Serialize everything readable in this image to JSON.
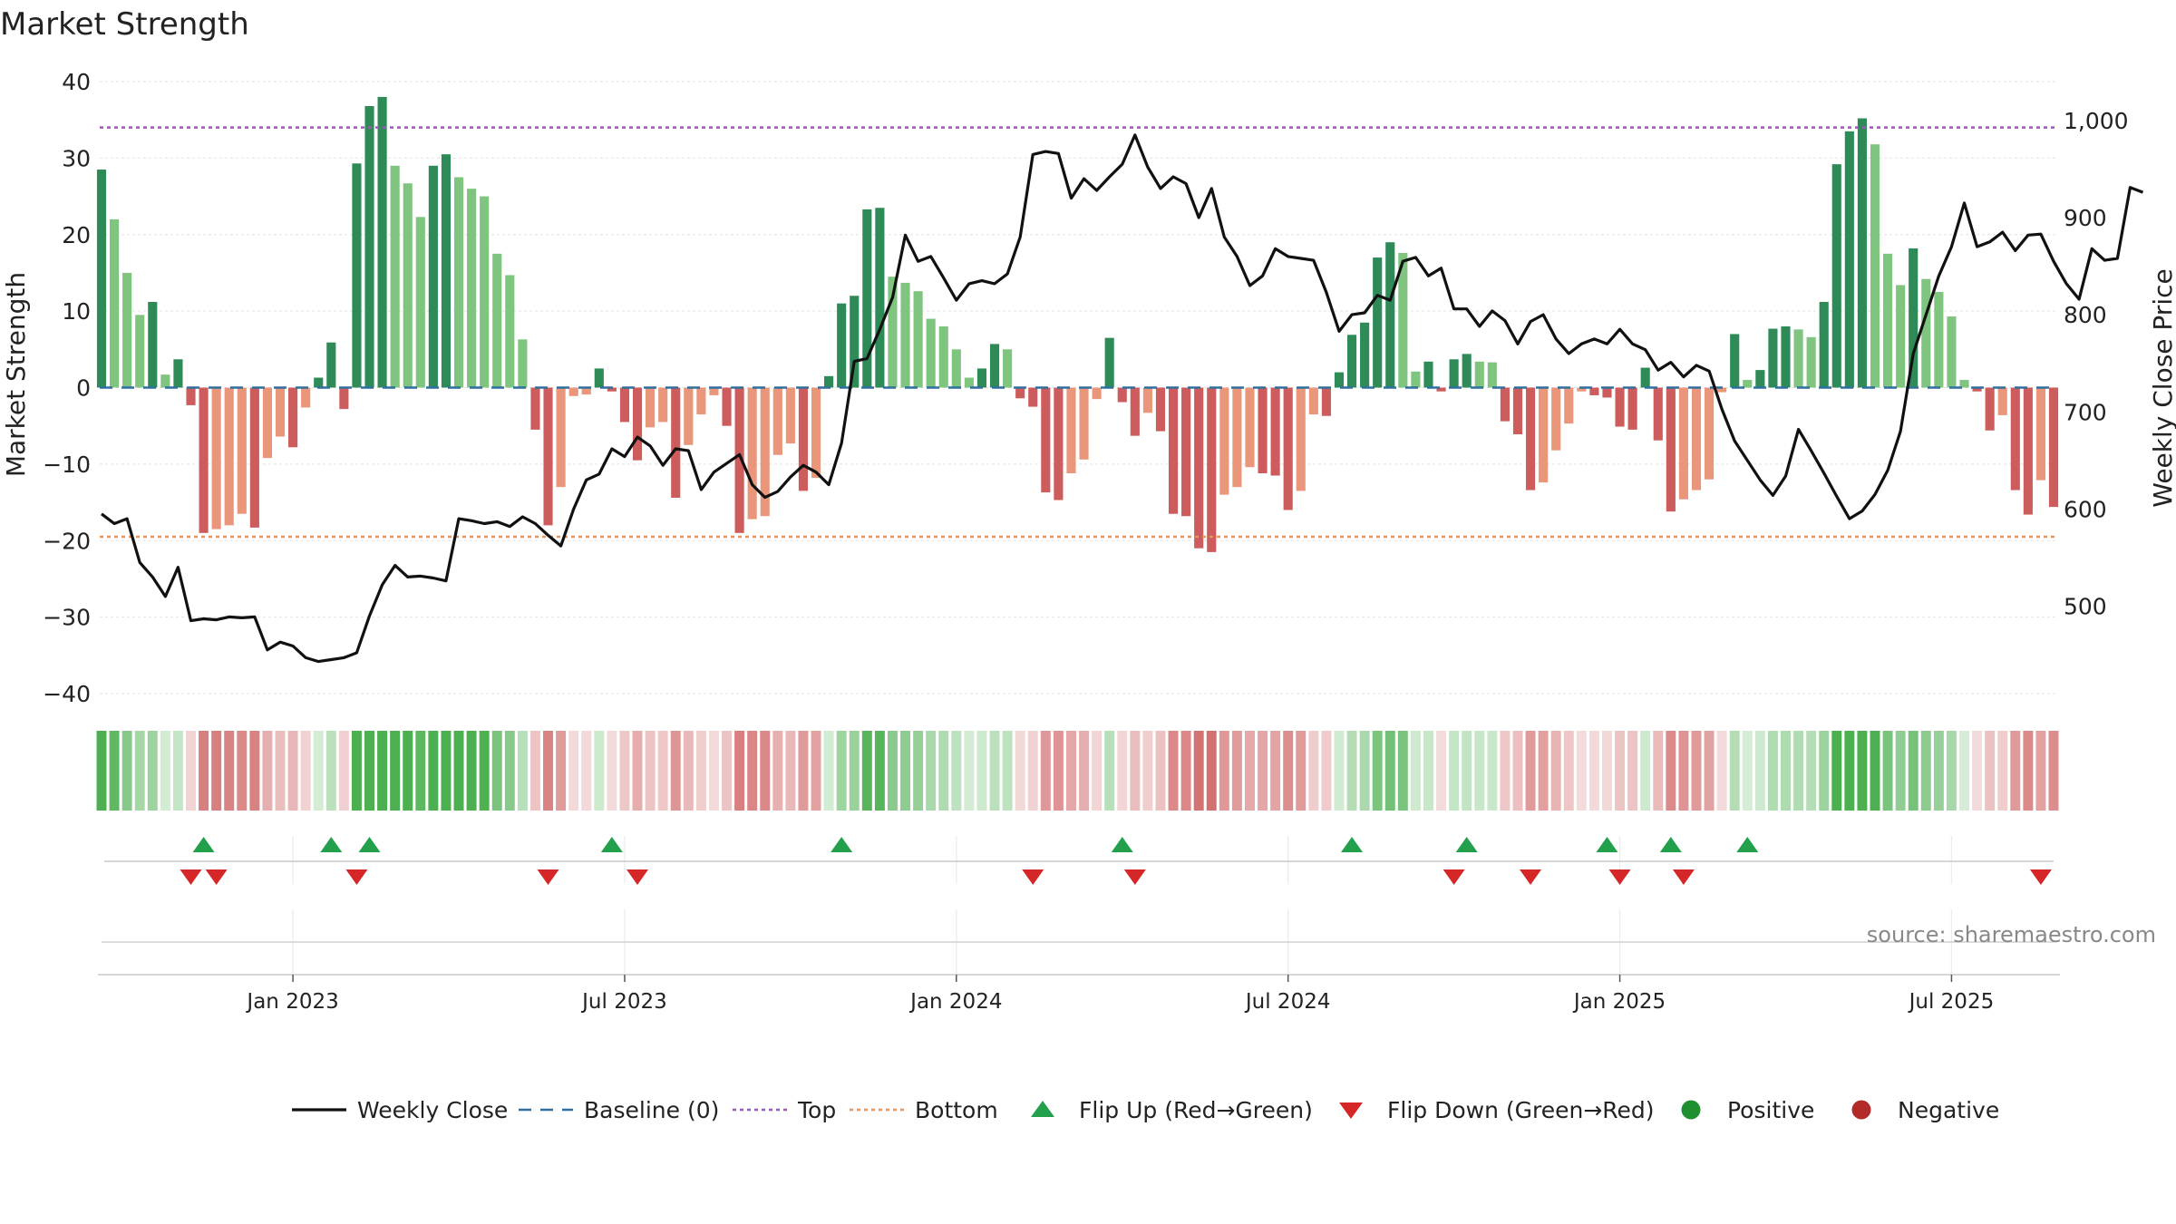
{
  "chart_data": {
    "type": "bar+line",
    "title": "Market Strength",
    "y_left_label": "Market Strength",
    "y_right_label": "Weekly Close Price",
    "y_left_range": [
      -40,
      40
    ],
    "y_left_ticks": [
      40,
      30,
      20,
      10,
      0,
      -10,
      -20,
      -30,
      -40
    ],
    "y_left_tick_labels": [
      "40",
      "30",
      "20",
      "10",
      "0",
      "−10",
      "−20",
      "−30",
      "−40"
    ],
    "y_right_range": [
      410,
      1040
    ],
    "y_right_ticks": [
      1000,
      900,
      800,
      700,
      600,
      500
    ],
    "y_right_tick_labels": [
      "1,000",
      "900",
      "800",
      "700",
      "600",
      "500"
    ],
    "x_ticks": [
      {
        "week": 15,
        "label": "Jan 2023"
      },
      {
        "week": 41,
        "label": "Jul 2023"
      },
      {
        "week": 67,
        "label": "Jan 2024"
      },
      {
        "week": 93,
        "label": "Jul 2024"
      },
      {
        "week": 119,
        "label": "Jan 2025"
      },
      {
        "week": 145,
        "label": "Jul 2025"
      }
    ],
    "top_threshold": 34,
    "bottom_threshold": -19.5,
    "strength": [
      28.5,
      22,
      15,
      9.5,
      11.2,
      1.7,
      3.7,
      -2.3,
      -19,
      -18.5,
      -18,
      -16.5,
      -18.3,
      -9.2,
      -6.4,
      -7.8,
      -2.6,
      1.3,
      5.9,
      -2.8,
      29.3,
      36.8,
      38,
      29,
      26.7,
      22.3,
      29,
      30.5,
      27.5,
      26,
      25,
      17.5,
      14.7,
      6.3,
      -5.5,
      -18,
      -13,
      -1.1,
      -0.9,
      2.5,
      -0.5,
      -4.5,
      -9.5,
      -5.2,
      -4.5,
      -14.4,
      -7.5,
      -3.5,
      -1,
      -5,
      -19,
      -17.2,
      -16.8,
      -8.8,
      -7.3,
      -13.5,
      -11.8,
      1.5,
      11,
      12,
      23.3,
      23.5,
      14.5,
      13.7,
      12.6,
      9,
      8,
      5,
      1.3,
      2.5,
      5.7,
      5,
      -1.4,
      -2.5,
      -13.7,
      -14.7,
      -11.2,
      -9.4,
      -1.5,
      6.5,
      -1.9,
      -6.3,
      -3.3,
      -5.7,
      -16.5,
      -16.8,
      -21,
      -21.5,
      -14,
      -13,
      -10.4,
      -11.2,
      -11.5,
      -16,
      -13.5,
      -3.5,
      -3.7,
      2,
      6.9,
      8.5,
      17,
      19,
      17.6,
      2.1,
      3.4,
      -0.5,
      3.7,
      4.4,
      3.4,
      3.3,
      -4.4,
      -6.1,
      -13.4,
      -12.4,
      -8.2,
      -4.7,
      -0.5,
      -1,
      -1.3,
      -5.1,
      -5.5,
      2.6,
      -6.9,
      -16.2,
      -14.6,
      -13.4,
      -12,
      -0.6,
      7,
      1,
      2.3,
      7.7,
      8,
      7.6,
      6.6,
      11.2,
      29.2,
      33.5,
      35.2,
      31.8,
      17.5,
      13.4,
      18.2,
      14.2,
      12.5,
      9.3,
      1,
      -0.5,
      -5.6,
      -3.6,
      -13.4,
      -16.6,
      -12.1,
      -15.6
    ],
    "weekly_close": [
      595,
      585,
      590,
      545,
      530,
      510,
      540,
      485,
      487,
      486,
      489,
      488,
      489,
      455,
      463,
      459,
      447,
      443,
      445,
      447,
      452,
      490,
      522,
      542,
      530,
      531,
      529,
      526,
      590,
      588,
      585,
      587,
      582,
      592,
      585,
      573,
      562,
      600,
      630,
      636,
      662,
      654,
      674,
      665,
      645,
      662,
      660,
      620,
      638,
      647,
      656,
      625,
      612,
      618,
      633,
      645,
      638,
      625,
      668,
      752,
      755,
      785,
      818,
      882,
      855,
      860,
      838,
      815,
      832,
      835,
      832,
      842,
      880,
      965,
      968,
      966,
      920,
      940,
      928,
      942,
      955,
      985,
      952,
      930,
      942,
      935,
      900,
      930,
      880,
      860,
      830,
      840,
      868,
      860,
      858,
      856,
      823,
      783,
      800,
      802,
      820,
      815,
      855,
      859,
      840,
      848,
      806,
      806,
      788,
      804,
      794,
      770,
      793,
      800,
      775,
      760,
      770,
      775,
      770,
      785,
      770,
      764,
      743,
      751,
      736,
      748,
      742,
      703,
      670,
      650,
      630,
      614,
      634,
      682,
      660,
      637,
      613,
      590,
      598,
      615,
      640,
      680,
      760,
      800,
      840,
      870,
      915,
      870,
      875,
      885,
      866,
      882,
      883,
      855,
      832,
      816,
      868,
      856,
      858,
      931,
      926
    ],
    "weekly_close_label": "Weekly Close",
    "source": "source: sharemaestro.com",
    "flip_up_weeks": [
      8,
      18,
      21,
      40,
      58,
      80,
      98,
      107,
      118,
      123,
      129
    ],
    "flip_down_weeks": [
      7,
      9,
      20,
      35,
      42,
      73,
      81,
      106,
      112,
      119,
      124,
      152
    ],
    "legend": [
      {
        "label": "Weekly Close",
        "kind": "line-solid",
        "color": "#111111"
      },
      {
        "label": "Baseline (0)",
        "kind": "line-dash",
        "color": "#2f6f9f"
      },
      {
        "label": "Top",
        "kind": "line-dot",
        "color": "#9b59b6"
      },
      {
        "label": "Bottom",
        "kind": "line-dot",
        "color": "#e8945a"
      },
      {
        "label": "Flip Up (Red→Green)",
        "kind": "tri-up",
        "color": "#22a04b"
      },
      {
        "label": "Flip Down (Green→Red)",
        "kind": "tri-down",
        "color": "#d62728"
      },
      {
        "label": "Positive",
        "kind": "dot",
        "color": "#1f8f2f"
      },
      {
        "label": "Negative",
        "kind": "dot",
        "color": "#b22a2a"
      }
    ],
    "colors": {
      "pos_strong": "#2e8b57",
      "pos_weak": "#7fc47f",
      "neg_strong": "#cd5c5c",
      "neg_weak": "#e9967a",
      "baseline": "#2f6f9f",
      "top": "#9b59b6",
      "bottom": "#e8945a",
      "line": "#111111",
      "flip_up": "#22a04b",
      "flip_down": "#d62728",
      "strip_pos": "#4caf50",
      "strip_neg": "#cd5c5c"
    }
  }
}
